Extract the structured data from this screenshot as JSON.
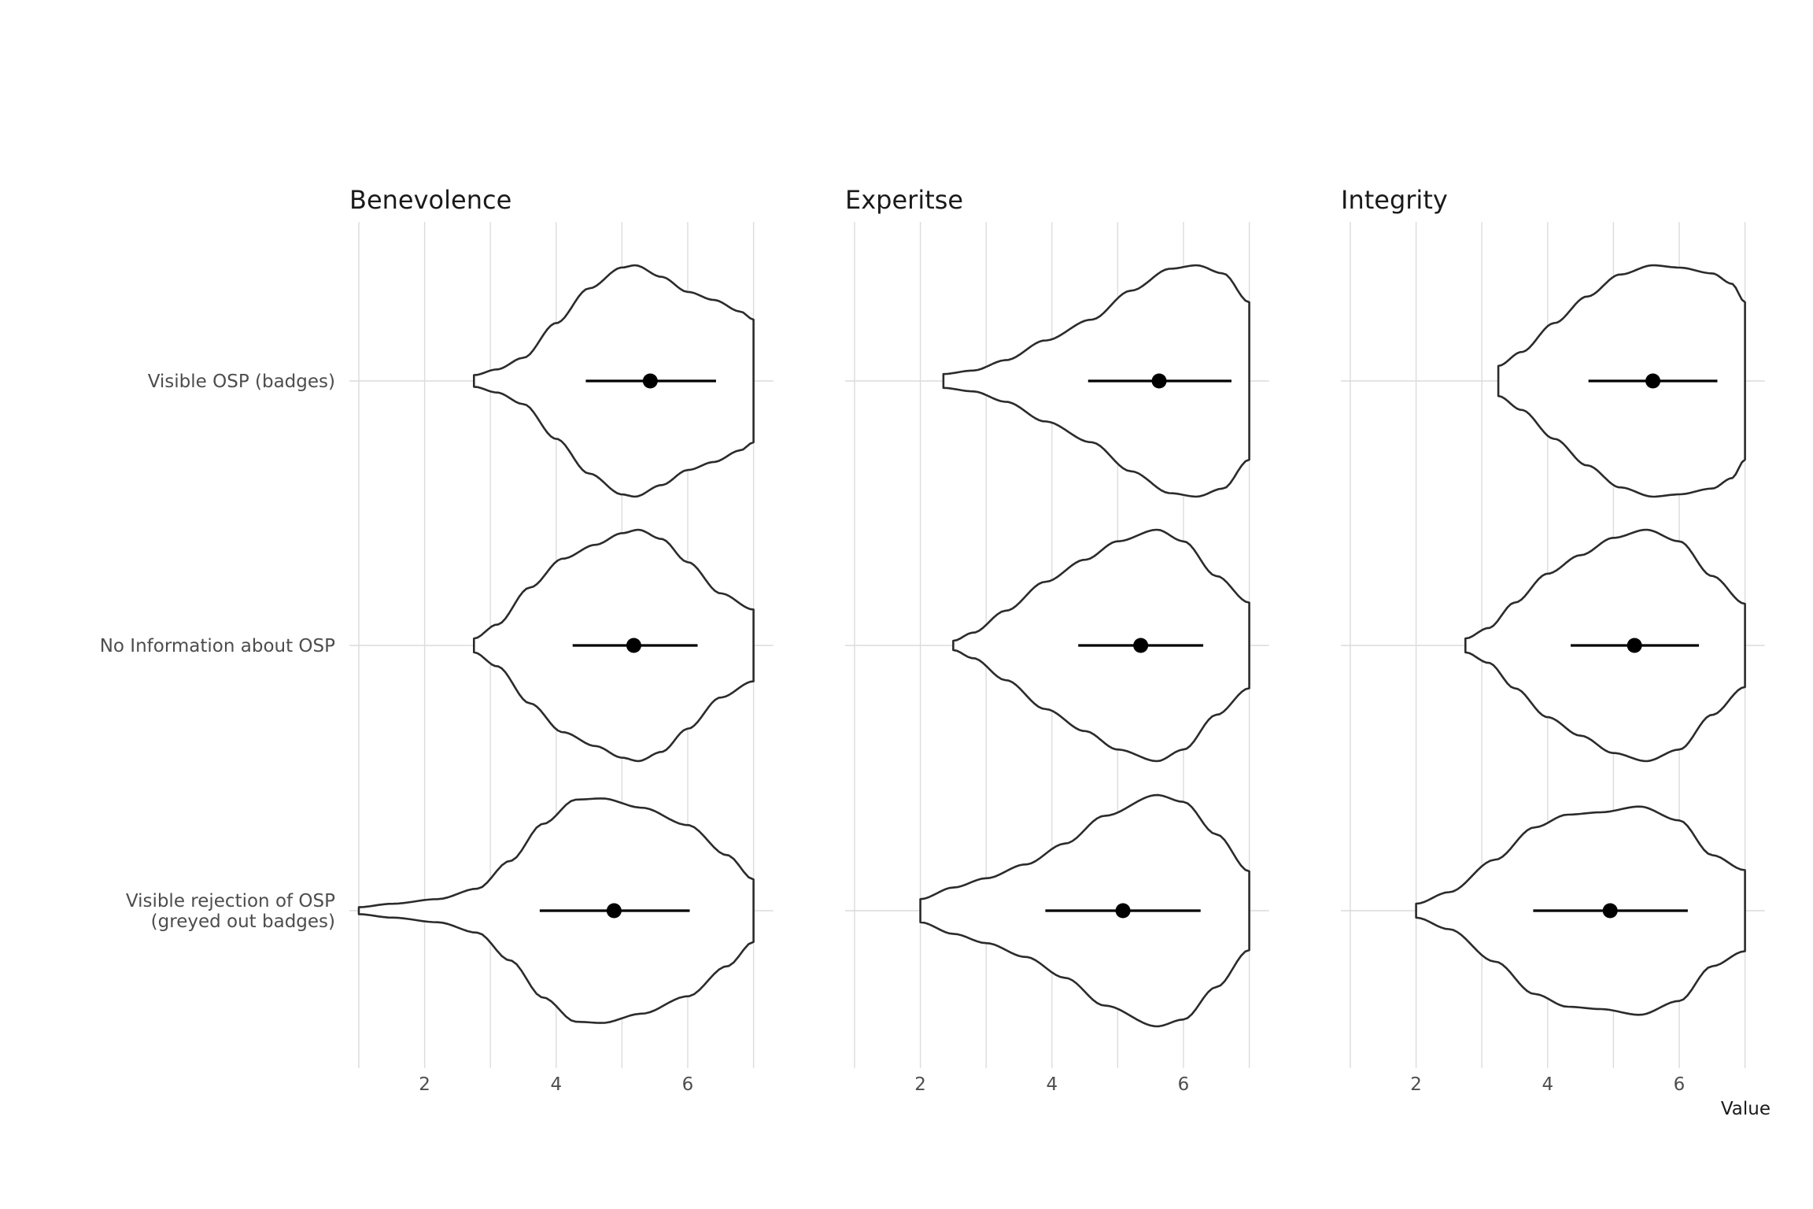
{
  "chart_data": {
    "type": "violin",
    "title": "",
    "xlabel": "Value",
    "ylabel": "",
    "xlim": [
      1,
      7.3
    ],
    "x_ticks": [
      2,
      4,
      6
    ],
    "grid": true,
    "categories": [
      "Visible OSP (badges)",
      "No Information about OSP",
      "Visible rejection of OSP\n(greyed out badges)"
    ],
    "facets": [
      {
        "name": "Benevolence",
        "groups": [
          {
            "category": "Visible OSP (badges)",
            "min": 2.75,
            "max": 7,
            "mean": 5.43,
            "ci": [
              4.45,
              6.43
            ],
            "density": [
              [
                2.75,
                0.05
              ],
              [
                3.1,
                0.1
              ],
              [
                3.5,
                0.2
              ],
              [
                4.0,
                0.5
              ],
              [
                4.5,
                0.8
              ],
              [
                5.0,
                0.98
              ],
              [
                5.2,
                1.0
              ],
              [
                5.6,
                0.9
              ],
              [
                6.0,
                0.77
              ],
              [
                6.4,
                0.7
              ],
              [
                6.8,
                0.6
              ],
              [
                7.0,
                0.53
              ]
            ]
          },
          {
            "category": "No Information about OSP",
            "min": 2.75,
            "max": 7,
            "mean": 5.18,
            "ci": [
              4.25,
              6.15
            ],
            "density": [
              [
                2.75,
                0.06
              ],
              [
                3.1,
                0.18
              ],
              [
                3.6,
                0.5
              ],
              [
                4.1,
                0.75
              ],
              [
                4.6,
                0.87
              ],
              [
                5.0,
                0.97
              ],
              [
                5.25,
                1.0
              ],
              [
                5.6,
                0.92
              ],
              [
                6.0,
                0.72
              ],
              [
                6.5,
                0.45
              ],
              [
                7.0,
                0.31
              ]
            ]
          },
          {
            "category": "Visible rejection of OSP\n(greyed out badges)",
            "min": 1,
            "max": 7,
            "mean": 4.88,
            "ci": [
              3.75,
              6.03
            ],
            "density": [
              [
                1.0,
                0.03
              ],
              [
                1.5,
                0.06
              ],
              [
                2.2,
                0.1
              ],
              [
                2.8,
                0.19
              ],
              [
                3.3,
                0.43
              ],
              [
                3.8,
                0.75
              ],
              [
                4.3,
                0.96
              ],
              [
                4.7,
                0.97
              ],
              [
                5.3,
                0.89
              ],
              [
                6.0,
                0.74
              ],
              [
                6.6,
                0.48
              ],
              [
                7.0,
                0.27
              ]
            ]
          }
        ]
      },
      {
        "name": "Experitse",
        "groups": [
          {
            "category": "Visible OSP (badges)",
            "min": 2.35,
            "max": 7,
            "mean": 5.63,
            "ci": [
              4.55,
              6.73
            ],
            "density": [
              [
                2.35,
                0.06
              ],
              [
                2.8,
                0.09
              ],
              [
                3.3,
                0.18
              ],
              [
                3.9,
                0.35
              ],
              [
                4.6,
                0.53
              ],
              [
                5.2,
                0.78
              ],
              [
                5.8,
                0.97
              ],
              [
                6.2,
                1.0
              ],
              [
                6.6,
                0.93
              ],
              [
                7.0,
                0.68
              ]
            ]
          },
          {
            "category": "No Information about OSP",
            "min": 2.5,
            "max": 7,
            "mean": 5.35,
            "ci": [
              4.4,
              6.3
            ],
            "density": [
              [
                2.5,
                0.04
              ],
              [
                2.8,
                0.11
              ],
              [
                3.3,
                0.3
              ],
              [
                3.9,
                0.55
              ],
              [
                4.5,
                0.74
              ],
              [
                5.0,
                0.9
              ],
              [
                5.6,
                1.0
              ],
              [
                6.0,
                0.9
              ],
              [
                6.5,
                0.6
              ],
              [
                7.0,
                0.37
              ]
            ]
          },
          {
            "category": "Visible rejection of OSP\n(greyed out badges)",
            "min": 2,
            "max": 7,
            "mean": 5.08,
            "ci": [
              3.9,
              6.26
            ],
            "density": [
              [
                2.0,
                0.1
              ],
              [
                2.5,
                0.2
              ],
              [
                3.0,
                0.28
              ],
              [
                3.6,
                0.4
              ],
              [
                4.2,
                0.58
              ],
              [
                4.8,
                0.82
              ],
              [
                5.6,
                1.0
              ],
              [
                6.0,
                0.94
              ],
              [
                6.5,
                0.66
              ],
              [
                7.0,
                0.34
              ]
            ]
          }
        ]
      },
      {
        "name": "Integrity",
        "groups": [
          {
            "category": "Visible OSP (badges)",
            "min": 3.25,
            "max": 7,
            "mean": 5.6,
            "ci": [
              4.62,
              6.58
            ],
            "density": [
              [
                3.25,
                0.13
              ],
              [
                3.6,
                0.25
              ],
              [
                4.1,
                0.5
              ],
              [
                4.6,
                0.73
              ],
              [
                5.1,
                0.92
              ],
              [
                5.6,
                1.0
              ],
              [
                6.0,
                0.98
              ],
              [
                6.5,
                0.93
              ],
              [
                6.8,
                0.84
              ],
              [
                7.0,
                0.68
              ]
            ]
          },
          {
            "category": "No Information about OSP",
            "min": 2.75,
            "max": 7,
            "mean": 5.32,
            "ci": [
              4.35,
              6.3
            ],
            "density": [
              [
                2.75,
                0.06
              ],
              [
                3.1,
                0.15
              ],
              [
                3.5,
                0.37
              ],
              [
                4.0,
                0.62
              ],
              [
                4.5,
                0.78
              ],
              [
                5.0,
                0.93
              ],
              [
                5.5,
                1.0
              ],
              [
                6.0,
                0.9
              ],
              [
                6.5,
                0.6
              ],
              [
                7.0,
                0.36
              ]
            ]
          },
          {
            "category": "Visible rejection of OSP\n(greyed out badges)",
            "min": 2,
            "max": 7,
            "mean": 4.95,
            "ci": [
              3.78,
              6.13
            ],
            "density": [
              [
                2.0,
                0.06
              ],
              [
                2.5,
                0.16
              ],
              [
                3.2,
                0.44
              ],
              [
                3.8,
                0.72
              ],
              [
                4.3,
                0.83
              ],
              [
                4.8,
                0.85
              ],
              [
                5.4,
                0.9
              ],
              [
                6.0,
                0.78
              ],
              [
                6.5,
                0.48
              ],
              [
                7.0,
                0.35
              ]
            ]
          }
        ]
      }
    ]
  }
}
